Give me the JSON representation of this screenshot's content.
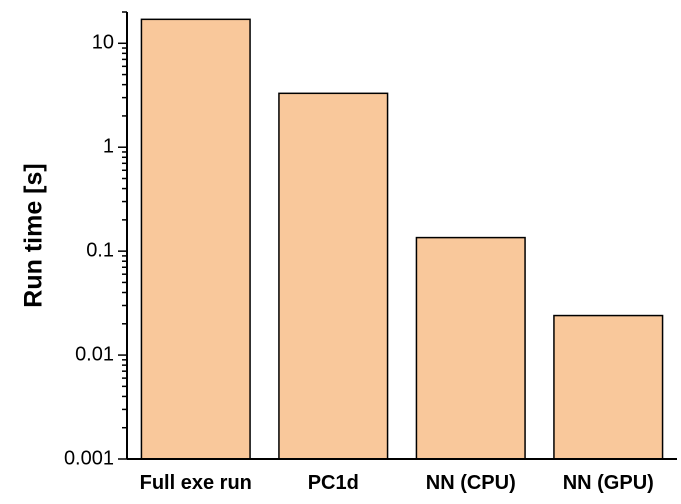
{
  "chart_data": {
    "type": "bar",
    "categories": [
      "Full exe run",
      "PC1d",
      "NN (CPU)",
      "NN (GPU)"
    ],
    "values": [
      17,
      3.3,
      0.135,
      0.024
    ],
    "title": "",
    "xlabel": "",
    "ylabel": "Run time [s]",
    "yscale": "log",
    "ylim": [
      0.001,
      20
    ],
    "yticks": [
      {
        "value": 0.001,
        "label": "0.001"
      },
      {
        "value": 0.01,
        "label": "0.01"
      },
      {
        "value": 0.1,
        "label": "0.1"
      },
      {
        "value": 1,
        "label": "1"
      },
      {
        "value": 10,
        "label": "10"
      }
    ],
    "bar_color": "#F9C89B",
    "edge_color": "#000000",
    "grid": false,
    "legend": "none"
  }
}
